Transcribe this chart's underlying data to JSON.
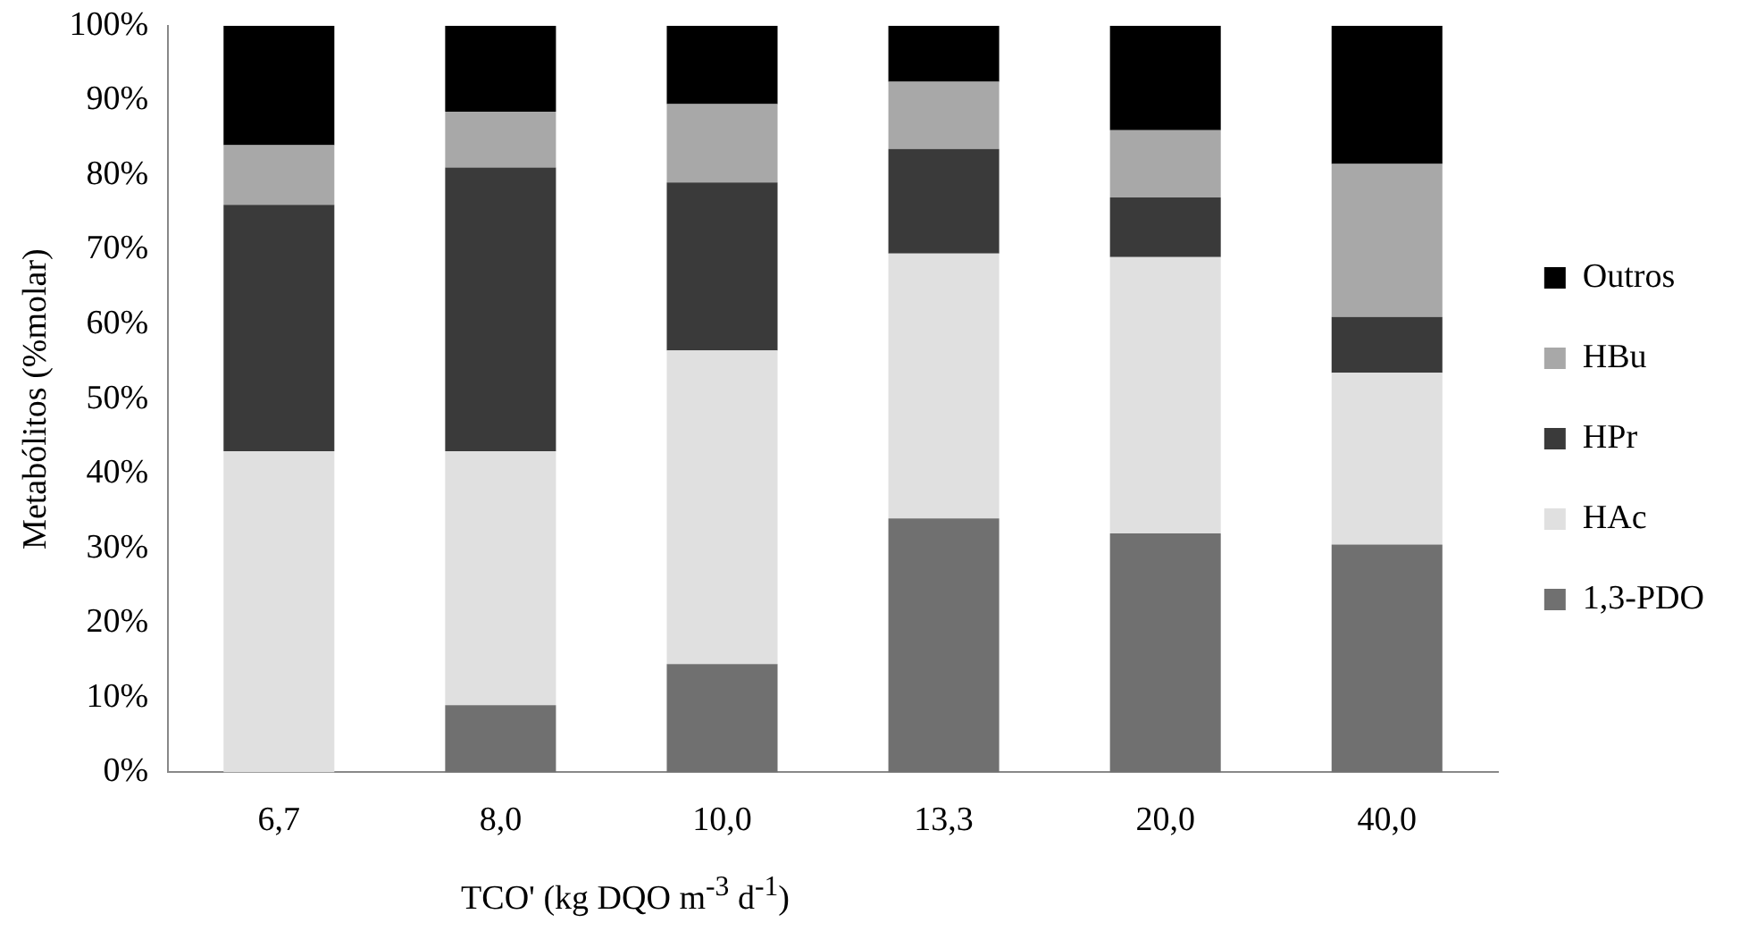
{
  "chart_data": {
    "type": "bar",
    "stacked": true,
    "xlabel": "TCO' (kg DQO m$^{-3}$ d$^{-1}$)",
    "ylabel": "Metabólitos (%molar)",
    "categories": [
      "6,7",
      "8,0",
      "10,0",
      "13,3",
      "20,0",
      "40,0"
    ],
    "series": [
      {
        "name": "1,3-PDO",
        "color": "#707070",
        "values": [
          0,
          9,
          14.5,
          34,
          32,
          30.5
        ]
      },
      {
        "name": "HAc",
        "color": "#e0e0e0",
        "values": [
          43,
          34,
          42,
          35.5,
          37,
          23
        ]
      },
      {
        "name": "HPr",
        "color": "#3a3a3a",
        "values": [
          33,
          38,
          22.5,
          14,
          8,
          7.5
        ]
      },
      {
        "name": "HBu",
        "color": "#a8a8a8",
        "values": [
          8,
          7.5,
          10.5,
          9,
          9,
          20.5
        ]
      },
      {
        "name": "Outros",
        "color": "#000000",
        "values": [
          16,
          11.5,
          10.5,
          7.5,
          14,
          18.5
        ]
      }
    ],
    "ylim": [
      0,
      100
    ],
    "yticks": [
      {
        "value": 0,
        "label": "0%"
      },
      {
        "value": 10,
        "label": "10%"
      },
      {
        "value": 20,
        "label": "20%"
      },
      {
        "value": 30,
        "label": "30%"
      },
      {
        "value": 40,
        "label": "40%"
      },
      {
        "value": 50,
        "label": "50%"
      },
      {
        "value": 60,
        "label": "60%"
      },
      {
        "value": 70,
        "label": "70%"
      },
      {
        "value": 80,
        "label": "80%"
      },
      {
        "value": 90,
        "label": "90%"
      },
      {
        "value": 100,
        "label": "100%"
      }
    ],
    "grid": false,
    "legend": "right"
  }
}
